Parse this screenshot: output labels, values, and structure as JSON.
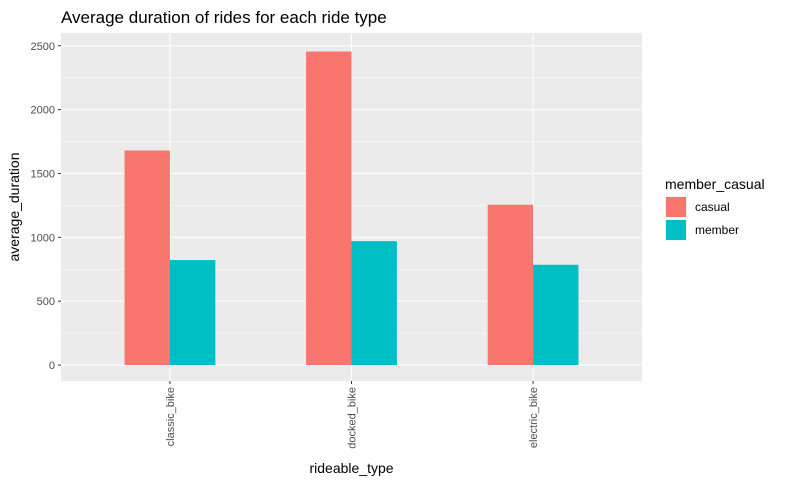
{
  "chart_data": {
    "type": "bar",
    "title": "Average duration of rides for each ride type",
    "xlabel": "rideable_type",
    "ylabel": "average_duration",
    "categories": [
      "classic_bike",
      "docked_bike",
      "electric_bike"
    ],
    "series": [
      {
        "name": "casual",
        "color": "#F8766D",
        "values": [
          1680,
          2455,
          1255
        ]
      },
      {
        "name": "member",
        "color": "#00BFC4",
        "values": [
          822,
          970,
          785
        ]
      }
    ],
    "ylim": [
      -125,
      2600
    ],
    "yticks": [
      0,
      500,
      1000,
      1500,
      2000,
      2500
    ],
    "grid": true,
    "legend": {
      "title": "member_casual",
      "placement": "right"
    }
  }
}
